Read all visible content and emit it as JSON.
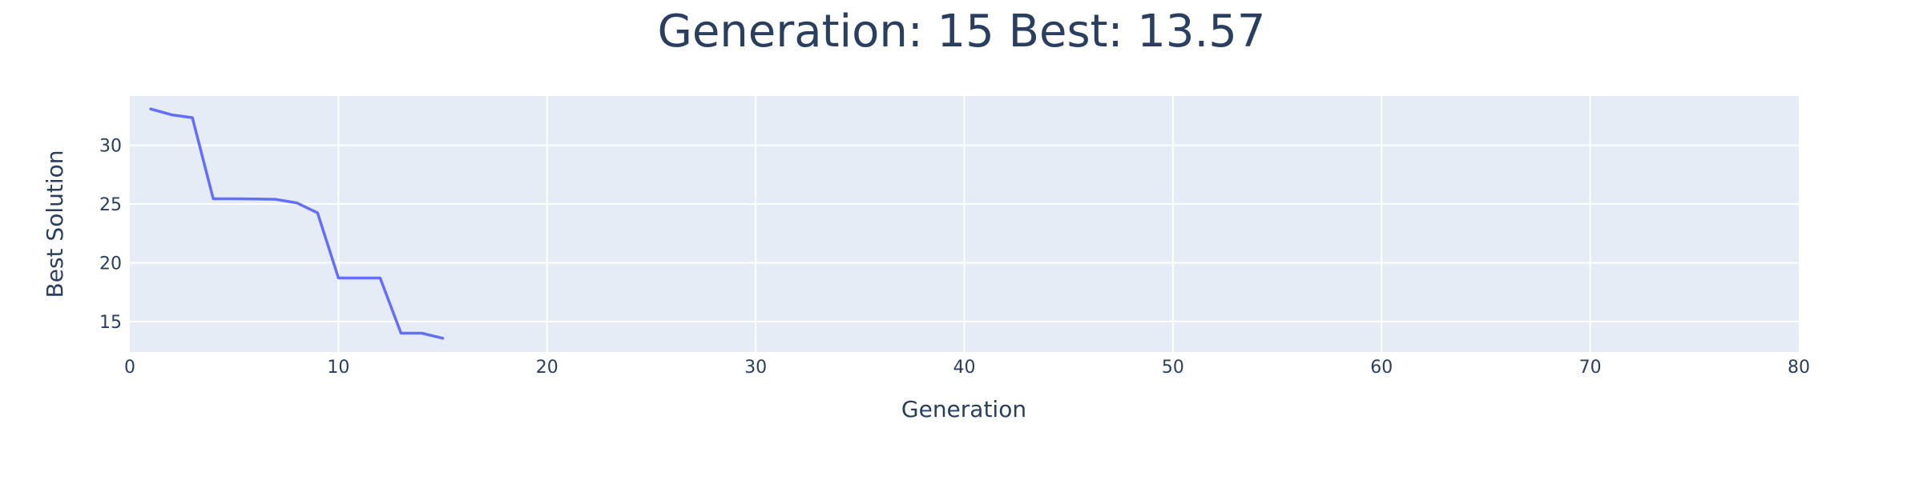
{
  "chart_data": {
    "type": "line",
    "title": "Generation: 15 Best: 13.57",
    "xlabel": "Generation",
    "ylabel": "Best Solution",
    "xlim": [
      0,
      80
    ],
    "ylim": [
      12.4,
      34.2
    ],
    "xticks": [
      0,
      10,
      20,
      30,
      40,
      50,
      60,
      70,
      80
    ],
    "yticks": [
      15,
      20,
      25,
      30
    ],
    "grid": true,
    "legend": "none",
    "colors": {
      "plot_background": "#e5ecf6",
      "line": "#636efa",
      "text": "#2a3f5f",
      "grid": "#ffffff"
    },
    "series": [
      {
        "x": [
          1,
          2,
          3,
          4,
          5,
          6,
          7,
          8,
          9,
          10,
          11,
          12,
          13,
          14,
          15
        ],
        "y": [
          33.1,
          32.6,
          32.35,
          25.45,
          25.45,
          25.43,
          25.4,
          25.1,
          24.25,
          18.7,
          18.7,
          18.7,
          14.0,
          14.0,
          13.57
        ]
      }
    ]
  }
}
